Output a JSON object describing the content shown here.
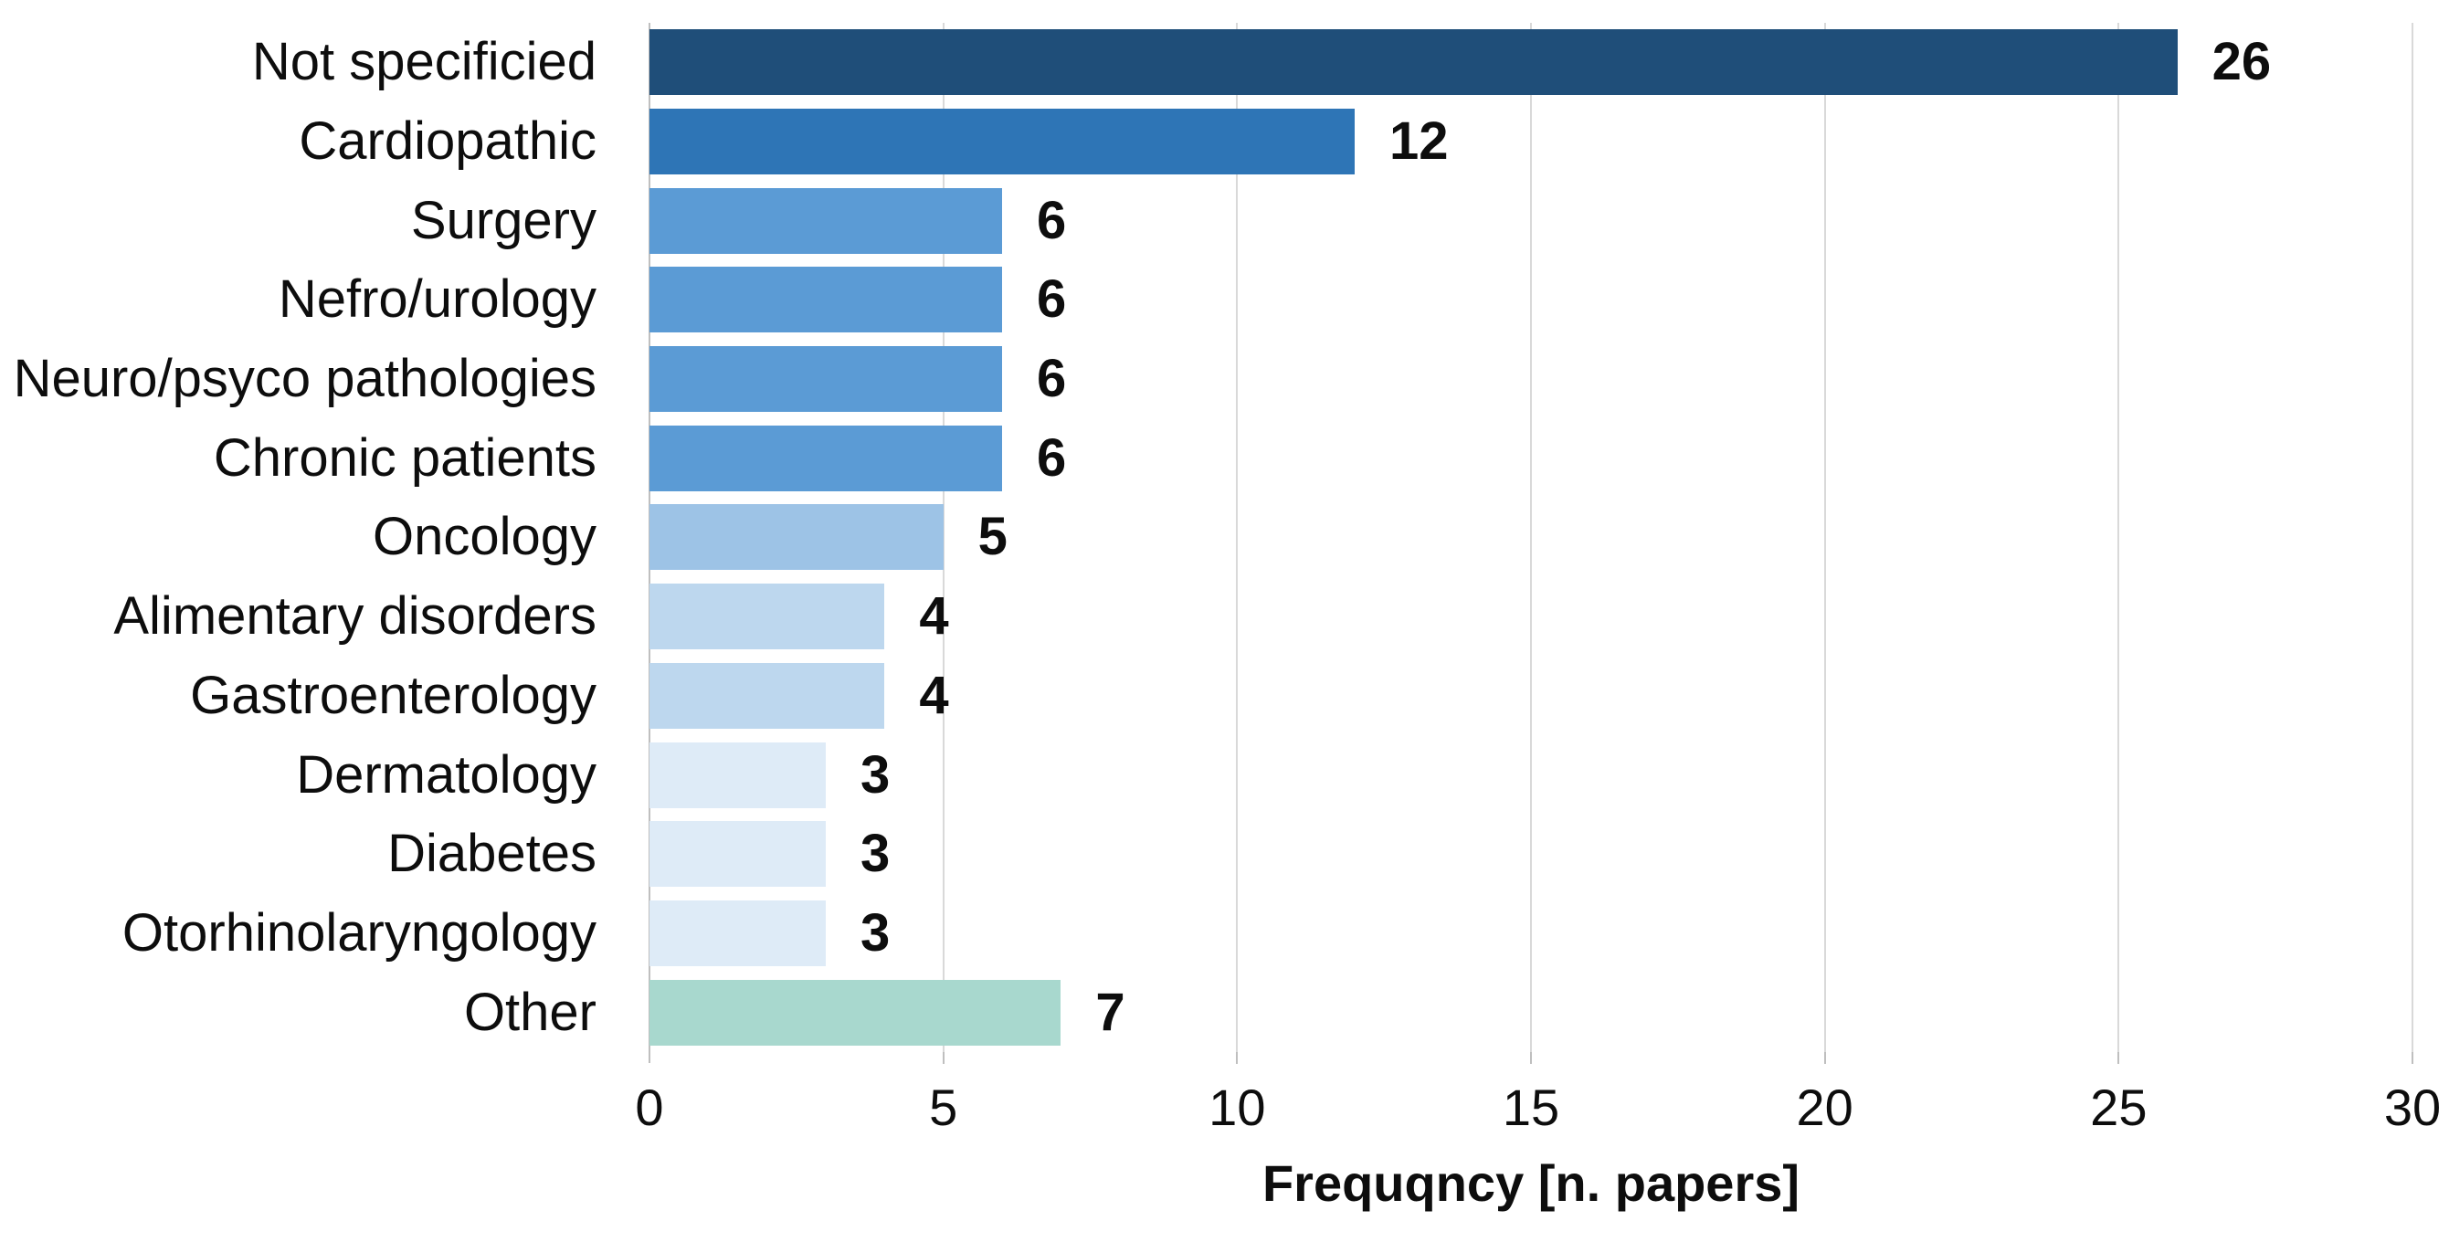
{
  "chart_data": {
    "type": "bar",
    "orientation": "horizontal",
    "categories": [
      "Not specificied",
      "Cardiopathic",
      "Surgery",
      "Nefro/urology",
      "Neuro/psyco pathologies",
      "Chronic patients",
      "Oncology",
      "Alimentary disorders",
      "Gastroenterology",
      "Dermatology",
      "Diabetes",
      "Otorhinolaryngology",
      "Other"
    ],
    "values": [
      26,
      12,
      6,
      6,
      6,
      6,
      5,
      4,
      4,
      3,
      3,
      3,
      7
    ],
    "bar_colors": [
      "#1f4e79",
      "#2e75b6",
      "#5b9bd5",
      "#5b9bd5",
      "#5b9bd5",
      "#5b9bd5",
      "#9dc3e6",
      "#bdd7ee",
      "#bdd7ee",
      "#deebf7",
      "#deebf7",
      "#deebf7",
      "#a8d8ce"
    ],
    "value_labels": [
      "26",
      "12",
      "6",
      "6",
      "6",
      "6",
      "5",
      "4",
      "4",
      "3",
      "3",
      "3",
      "7"
    ],
    "xlabel": "Frequqncy [n. papers]",
    "xticks": [
      0,
      5,
      10,
      15,
      20,
      25,
      30
    ],
    "xlim": [
      0,
      30
    ],
    "grid": true,
    "legend": "none",
    "title": ""
  },
  "style": {
    "grid_color": "#d9d9d9",
    "axis_color": "#bfbfbf",
    "text_color": "#0d0d0d",
    "background": "#ffffff"
  }
}
